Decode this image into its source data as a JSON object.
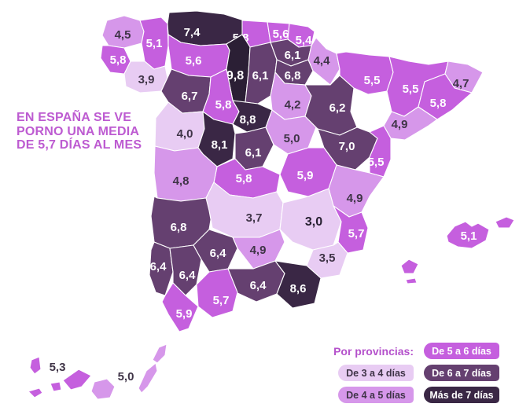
{
  "title": {
    "lines": [
      "EN ESPAÑA SE VE",
      "PORNO UNA MEDIA",
      "DE 5,7 DÍAS AL MES"
    ],
    "color": "#bd5bd1"
  },
  "legend": {
    "heading": "Por provincias:",
    "heading_color": "#b451cb",
    "items": [
      {
        "label": "De 3 a 4 días",
        "color": "#e8ccf3",
        "text": "#3f3447"
      },
      {
        "label": "De 4 a 5 días",
        "color": "#d697ea",
        "text": "#3f3447"
      },
      {
        "label": "De 5 a 6 días",
        "color": "#c55fde",
        "text": "#ffffff"
      },
      {
        "label": "De 6 a 7 días",
        "color": "#654070",
        "text": "#ffffff"
      },
      {
        "label": "Más de 7 días",
        "color": "#3a2745",
        "text": "#ffffff"
      }
    ]
  },
  "chart_data": {
    "type": "choropleth",
    "title": "EN ESPAÑA SE VE PORNO UNA MEDIA DE 5,7 DÍAS AL MES",
    "unit": "días al mes",
    "national_average": 5.7,
    "legend_buckets": [
      "De 3 a 4 días",
      "De 4 a 5 días",
      "De 5 a 6 días",
      "De 6 a 7 días",
      "Más de 7 días"
    ],
    "data": [
      {
        "name": "A Coruña",
        "value": 4.5,
        "display": "4,5"
      },
      {
        "name": "Lugo",
        "value": 5.1,
        "display": "5,1"
      },
      {
        "name": "Pontevedra",
        "value": 5.8,
        "display": "5,8"
      },
      {
        "name": "Ourense",
        "value": 3.9,
        "display": "3,9"
      },
      {
        "name": "Asturias",
        "value": 7.4,
        "display": "7,4"
      },
      {
        "name": "León",
        "value": 5.6,
        "display": "5,6"
      },
      {
        "name": "Cantabria",
        "value": 5.8,
        "display": "5,8"
      },
      {
        "name": "Bizkaia",
        "value": 5.6,
        "display": "5,6"
      },
      {
        "name": "Gipuzkoa",
        "value": 5.4,
        "display": "5,4"
      },
      {
        "name": "Álava",
        "value": 6.1,
        "display": "6,1"
      },
      {
        "name": "Palencia",
        "value": 9.8,
        "display": "9,8"
      },
      {
        "name": "Burgos",
        "value": 6.1,
        "display": "6,1"
      },
      {
        "name": "La Rioja",
        "value": 6.8,
        "display": "6,8"
      },
      {
        "name": "Navarra",
        "value": 4.4,
        "display": "4,4"
      },
      {
        "name": "Zamora",
        "value": 6.7,
        "display": "6,7"
      },
      {
        "name": "Valladolid",
        "value": 5.8,
        "display": "5,8"
      },
      {
        "name": "Soria",
        "value": 4.2,
        "display": "4,2"
      },
      {
        "name": "Segovia",
        "value": 8.8,
        "display": "8,8"
      },
      {
        "name": "Salamanca",
        "value": 4.0,
        "display": "4,0"
      },
      {
        "name": "Ávila",
        "value": 8.1,
        "display": "8,1"
      },
      {
        "name": "Madrid",
        "value": 6.1,
        "display": "6,1"
      },
      {
        "name": "Guadalajara",
        "value": 5.0,
        "display": "5,0"
      },
      {
        "name": "Zaragoza",
        "value": 6.2,
        "display": "6,2"
      },
      {
        "name": "Huesca",
        "value": 5.5,
        "display": "5,5"
      },
      {
        "name": "Lleida",
        "value": 5.5,
        "display": "5,5"
      },
      {
        "name": "Girona",
        "value": 4.7,
        "display": "4,7"
      },
      {
        "name": "Barcelona",
        "value": 5.8,
        "display": "5,8"
      },
      {
        "name": "Tarragona",
        "value": 4.9,
        "display": "4,9"
      },
      {
        "name": "Teruel",
        "value": 7.0,
        "display": "7,0"
      },
      {
        "name": "Castellón",
        "value": 5.5,
        "display": "5,5"
      },
      {
        "name": "Cuenca",
        "value": 5.9,
        "display": "5,9"
      },
      {
        "name": "Toledo",
        "value": 5.8,
        "display": "5,8"
      },
      {
        "name": "Cáceres",
        "value": 4.8,
        "display": "4,8"
      },
      {
        "name": "Valencia",
        "value": 4.9,
        "display": "4,9"
      },
      {
        "name": "Badajoz",
        "value": 6.8,
        "display": "6,8"
      },
      {
        "name": "Ciudad Real",
        "value": 3.7,
        "display": "3,7"
      },
      {
        "name": "Albacete",
        "value": 3.0,
        "display": "3,0"
      },
      {
        "name": "Alicante",
        "value": 5.7,
        "display": "5,7"
      },
      {
        "name": "Murcia",
        "value": 3.5,
        "display": "3,5"
      },
      {
        "name": "Huelva",
        "value": 6.4,
        "display": "6,4"
      },
      {
        "name": "Sevilla",
        "value": 6.4,
        "display": "6,4"
      },
      {
        "name": "Córdoba",
        "value": 6.4,
        "display": "6,4"
      },
      {
        "name": "Jaén",
        "value": 4.9,
        "display": "4,9"
      },
      {
        "name": "Granada",
        "value": 6.4,
        "display": "6,4"
      },
      {
        "name": "Almería",
        "value": 8.6,
        "display": "8,6"
      },
      {
        "name": "Málaga",
        "value": 5.7,
        "display": "5,7"
      },
      {
        "name": "Cádiz",
        "value": 5.9,
        "display": "5,9"
      },
      {
        "name": "Illes Balears",
        "value": 5.1,
        "display": "5,1"
      },
      {
        "name": "Santa Cruz de Tenerife",
        "value": 5.3,
        "display": "5,3"
      },
      {
        "name": "Las Palmas",
        "value": 5.0,
        "display": "5,0"
      }
    ]
  },
  "map": {
    "stroke": "#ffffff",
    "bucket_colors": {
      "3-4": "#e8ccf3",
      "4-5": "#d697ea",
      "5-6": "#c55fde",
      "6-7": "#654070",
      "7+": "#3a2745"
    },
    "provinces": [
      {
        "id": "a-coruna",
        "bucket": "4-5",
        "label_style": "dark",
        "label": [
          156,
          44
        ],
        "polys": [
          "130,45 136,26 158,20 178,26 183,40 180,55 158,61 138,58"
        ]
      },
      {
        "id": "lugo",
        "bucket": "5-6",
        "label_style": "light",
        "label": [
          196,
          55
        ],
        "polys": [
          "178,26 205,22 213,30 214,58 210,84 196,88 184,78 180,55 183,40"
        ]
      },
      {
        "id": "pontevedra",
        "bucket": "5-6",
        "label_style": "light",
        "label": [
          150,
          76
        ],
        "polys": [
          "130,58 138,58 158,61 166,78 158,94 140,92 128,74"
        ]
      },
      {
        "id": "ourense",
        "bucket": "3-4",
        "label_style": "dark",
        "label": [
          186,
          101
        ],
        "polys": [
          "158,94 166,78 184,78 196,88 210,84 213,99 205,116 178,118 160,110"
        ]
      },
      {
        "id": "asturias",
        "bucket": "7+",
        "label_style": "light",
        "label": [
          244,
          41
        ],
        "polys": [
          "213,30 215,16 250,14 285,18 310,26 308,44 288,56 255,58 230,54 214,44"
        ]
      },
      {
        "id": "leon",
        "bucket": "5-6",
        "label_style": "light",
        "label": [
          246,
          77
        ],
        "polys": [
          "214,44 230,54 255,58 288,56 292,64 288,88 268,98 240,96 218,88 214,58"
        ]
      },
      {
        "id": "cantabria",
        "bucket": "5-6",
        "label_style": "light",
        "label": [
          306,
          48
        ],
        "polys": [
          "308,26 340,28 344,54 318,60 308,44"
        ]
      },
      {
        "id": "bizkaia",
        "bucket": "5-6",
        "label_style": "light",
        "label": [
          357,
          43
        ],
        "polys": [
          "340,28 368,30 366,50 344,54"
        ]
      },
      {
        "id": "gipuzkoa",
        "bucket": "5-6",
        "label_style": "light",
        "label": [
          386,
          51
        ],
        "polys": [
          "368,30 392,34 400,40 396,58 380,60 366,50"
        ]
      },
      {
        "id": "alava",
        "bucket": "6-7",
        "label_style": "light",
        "label": [
          372,
          70
        ],
        "polys": [
          "344,54 366,50 380,60 396,58 392,76 370,84 352,76"
        ]
      },
      {
        "id": "palencia",
        "bucket": "7+",
        "fill": "#2b1f35",
        "label_style": "light-bold",
        "label": [
          299,
          96
        ],
        "polys": [
          "288,56 308,44 318,60 316,92 312,130 296,128 288,88 292,64"
        ]
      },
      {
        "id": "burgos",
        "bucket": "6-7",
        "label_style": "light",
        "label": [
          331,
          96
        ],
        "polys": [
          "318,60 344,54 352,76 350,92 344,122 328,132 312,130 316,92"
        ]
      },
      {
        "id": "la-rioja",
        "bucket": "6-7",
        "label_style": "light",
        "label": [
          372,
          96
        ],
        "polys": [
          "352,76 370,84 392,76 398,90 388,108 362,106 350,92"
        ]
      },
      {
        "id": "navarra",
        "bucket": "4-5",
        "label_style": "dark",
        "label": [
          409,
          77
        ],
        "polys": [
          "396,58 402,48 415,62 428,68 432,88 420,108 398,90 392,76"
        ]
      },
      {
        "id": "zamora",
        "bucket": "6-7",
        "label_style": "light",
        "label": [
          241,
          122
        ],
        "polys": [
          "213,99 218,88 240,96 268,98 266,120 258,142 232,144 214,130 205,116"
        ]
      },
      {
        "id": "valladolid",
        "bucket": "5-6",
        "label_style": "light",
        "label": [
          284,
          133
        ],
        "polys": [
          "268,98 288,88 296,128 304,142 296,158 272,152 258,142 266,120"
        ]
      },
      {
        "id": "soria",
        "bucket": "4-5",
        "label_style": "dark",
        "label": [
          372,
          133
        ],
        "polys": [
          "344,122 350,92 362,106 388,108 396,122 388,148 362,152 346,140"
        ]
      },
      {
        "id": "segovia",
        "bucket": "7+",
        "label_style": "light",
        "label": [
          315,
          152
        ],
        "polys": [
          "296,128 312,130 328,132 346,140 338,162 314,168 296,158 304,142"
        ]
      },
      {
        "id": "salamanca",
        "bucket": "3-4",
        "label_style": "dark",
        "label": [
          235,
          170
        ],
        "polys": [
          "198,150 214,130 232,144 258,142 260,164 252,188 222,192 197,186"
        ]
      },
      {
        "id": "avila",
        "bucket": "7+",
        "label_style": "light",
        "label": [
          279,
          184
        ],
        "polys": [
          "258,142 272,152 296,158 299,170 296,202 276,212 258,196 252,188 260,164"
        ]
      },
      {
        "id": "madrid",
        "bucket": "6-7",
        "label_style": "light",
        "label": [
          322,
          194
        ],
        "polys": [
          "299,170 314,168 338,162 348,184 334,212 312,216 299,202"
        ]
      },
      {
        "id": "guadalajara",
        "bucket": "4-5",
        "label_style": "dark",
        "label": [
          371,
          176
        ],
        "polys": [
          "338,162 346,140 362,152 388,148 402,162 392,188 366,196 348,184"
        ]
      },
      {
        "id": "zaragoza",
        "bucket": "6-7",
        "label_style": "light",
        "label": [
          429,
          137
        ],
        "polys": [
          "388,108 420,108 432,96 450,112 446,142 454,162 432,172 404,164 388,148 396,122"
        ]
      },
      {
        "id": "huesca",
        "bucket": "5-6",
        "label_style": "light",
        "label": [
          473,
          102
        ],
        "polys": [
          "432,88 428,68 440,66 470,70 495,72 500,92 492,116 468,120 450,112 432,96"
        ]
      },
      {
        "id": "lleida",
        "bucket": "5-6",
        "label_style": "light",
        "label": [
          522,
          113
        ],
        "polys": [
          "495,72 520,78 545,82 570,78 566,94 540,104 532,136 514,148 498,142 492,116 500,92"
        ]
      },
      {
        "id": "girona",
        "bucket": "4-5",
        "label_style": "dark",
        "label": [
          586,
          106
        ],
        "polys": [
          "570,78 595,82 614,92 600,118 578,112 566,94"
        ]
      },
      {
        "id": "barcelona",
        "bucket": "5-6",
        "label_style": "light",
        "label": [
          557,
          131
        ],
        "polys": [
          "540,104 566,94 578,112 600,118 575,140 556,152 532,136"
        ]
      },
      {
        "id": "tarragona",
        "bucket": "4-5",
        "label_style": "dark",
        "label": [
          508,
          158
        ],
        "polys": [
          "498,142 514,148 532,136 556,152 545,160 515,178 497,176 488,160"
        ]
      },
      {
        "id": "teruel",
        "bucket": "6-7",
        "label_style": "light",
        "label": [
          441,
          186
        ],
        "polys": [
          "404,164 432,172 454,162 470,168 480,176 470,200 452,216 428,210 412,188"
        ]
      },
      {
        "id": "castellon",
        "bucket": "5-6",
        "label_style": "light",
        "label": [
          478,
          206
        ],
        "polys": [
          "470,168 488,160 497,176 497,203 488,225 470,220 470,200 480,176"
        ]
      },
      {
        "id": "cuenca",
        "bucket": "5-6",
        "label_style": "light",
        "label": [
          388,
          223
        ],
        "polys": [
          "366,196 392,188 412,188 428,210 418,240 392,250 366,244 356,222"
        ]
      },
      {
        "id": "toledo",
        "bucket": "5-6",
        "label_style": "light",
        "label": [
          310,
          227
        ],
        "polys": [
          "276,212 299,202 312,216 334,212 356,222 352,244 322,252 292,248 272,232"
        ]
      },
      {
        "id": "caceres",
        "bucket": "4-5",
        "label_style": "dark",
        "label": [
          230,
          230
        ],
        "polys": [
          "197,186 222,192 252,188 258,196 276,212 272,232 262,252 230,256 200,252 196,220"
        ]
      },
      {
        "id": "valencia",
        "bucket": "4-5",
        "label_style": "dark",
        "label": [
          451,
          252
        ],
        "polys": [
          "418,240 428,210 452,216 470,220 488,225 470,250 460,270 444,276 424,262"
        ]
      },
      {
        "id": "badajoz",
        "bucket": "6-7",
        "label_style": "light",
        "label": [
          227,
          289
        ],
        "polys": [
          "200,252 230,256 262,252 270,268 266,292 246,312 216,316 196,308 192,275 196,250"
        ]
      },
      {
        "id": "ciudad-real",
        "bucket": "3-4",
        "label_style": "dark",
        "label": [
          323,
          277
        ],
        "polys": [
          "272,232 292,248 322,252 352,244 360,258 356,292 330,302 296,302 270,290 266,268 262,252"
        ]
      },
      {
        "id": "albacete",
        "bucket": "3-4",
        "label_style": "dark-bold",
        "label": [
          399,
          282
        ],
        "polys": [
          "360,258 392,250 418,240 424,262 434,282 424,312 398,318 372,308 356,292"
        ]
      },
      {
        "id": "alicante",
        "bucket": "5-6",
        "label_style": "light",
        "label": [
          453,
          297
        ],
        "polys": [
          "424,262 444,276 460,270 468,290 462,318 442,322 430,308 434,282"
        ]
      },
      {
        "id": "murcia",
        "bucket": "3-4",
        "label_style": "dark",
        "label": [
          416,
          328
        ],
        "polys": [
          "398,318 424,312 430,308 442,322 432,350 408,354 390,338"
        ]
      },
      {
        "id": "huelva",
        "bucket": "6-7",
        "label_style": "light",
        "label": [
          201,
          339
        ],
        "polys": [
          "196,308 216,316 220,346 210,376 198,372 190,350 192,318"
        ]
      },
      {
        "id": "sevilla",
        "bucket": "6-7",
        "label_style": "light",
        "label": [
          238,
          350
        ],
        "polys": [
          "216,316 246,312 256,330 250,362 236,376 220,360 220,346"
        ]
      },
      {
        "id": "cordoba",
        "bucket": "6-7",
        "label_style": "light",
        "label": [
          277,
          322
        ],
        "polys": [
          "246,312 266,292 296,302 302,316 290,342 266,346 256,330"
        ]
      },
      {
        "id": "jaen",
        "bucket": "4-5",
        "label_style": "dark",
        "label": [
          328,
          318
        ],
        "polys": [
          "296,302 330,302 356,292 362,308 350,332 322,342 302,316"
        ]
      },
      {
        "id": "granada",
        "bucket": "6-7",
        "label_style": "light",
        "label": [
          328,
          363
        ],
        "polys": [
          "290,342 322,342 350,332 362,348 352,374 326,384 300,372"
        ]
      },
      {
        "id": "almeria",
        "bucket": "7+",
        "label_style": "light",
        "label": [
          379,
          367
        ],
        "polys": [
          "350,332 390,338 408,354 400,386 372,392 352,374 362,348"
        ]
      },
      {
        "id": "malaga",
        "bucket": "5-6",
        "label_style": "light",
        "label": [
          281,
          382
        ],
        "polys": [
          "266,346 290,342 302,372 296,396 270,404 252,390 250,362"
        ]
      },
      {
        "id": "cadiz",
        "bucket": "5-6",
        "label_style": "light",
        "label": [
          234,
          399
        ],
        "polys": [
          "210,376 220,360 236,376 252,390 240,418 228,422 214,400 206,384"
        ]
      },
      {
        "id": "illes-balears",
        "bucket": "5-6",
        "label_style": "light",
        "label": [
          596,
          300
        ],
        "polys": [
          "568,300 578,288 592,282 600,288 608,284 622,292 618,306 600,316 582,314 570,308",
          "630,282 644,276 654,280 648,290 634,290",
          "510,338 520,330 532,336 526,348 514,348",
          "516,356 528,354 530,360 518,361"
        ]
      },
      {
        "id": "santa-cruz-de-tenerife",
        "bucket": "5-6",
        "label_style": "dark",
        "label": [
          73,
          467
        ],
        "polys": [
          "40,458 50,454 52,470 44,476 38,468",
          "36,498 50,494 54,500 44,506",
          "64,488 76,486 78,496 68,498",
          "80,484 100,470 116,478 104,492 90,496"
        ]
      },
      {
        "id": "las-palmas",
        "bucket": "4-5",
        "label_style": "dark",
        "label": [
          160,
          479
        ],
        "polys": [
          "120,486 136,482 146,492 140,506 124,508 116,498",
          "176,494 186,472 198,462 200,472 188,492 180,500",
          "194,458 202,442 212,438 210,452 200,462"
        ]
      }
    ]
  }
}
